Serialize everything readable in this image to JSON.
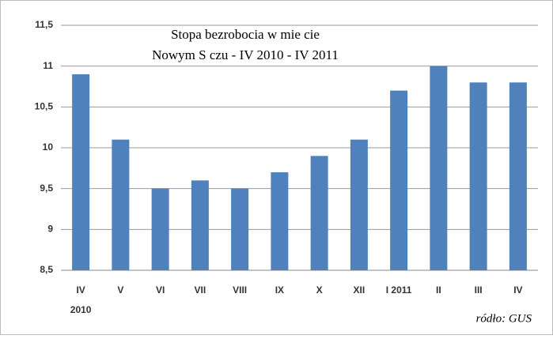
{
  "chart_data": {
    "type": "bar",
    "title": [
      "Stopa bezrobocia w mie  cie",
      "Nowym S  czu - IV 2010 - IV 2011"
    ],
    "categories": [
      "IV\n2010",
      "V",
      "VI",
      "VII",
      "VIII",
      "IX",
      "X",
      "XII",
      "I 2011",
      "II",
      "III",
      "IV"
    ],
    "values": [
      10.9,
      10.1,
      9.5,
      9.6,
      9.5,
      9.7,
      9.9,
      10.1,
      10.7,
      11.0,
      10.8,
      10.8
    ],
    "color": "#4f81bd",
    "ylim": [
      8.5,
      11.5
    ],
    "yticks": [
      {
        "value": 8.5,
        "label": "8,5"
      },
      9,
      {
        "value": 9.5,
        "label": "9,5"
      },
      10,
      {
        "value": 10.5,
        "label": "10,5"
      },
      11,
      {
        "value": 11.5,
        "label": "11,5"
      }
    ],
    "grid": true,
    "source": "ródło: GUS"
  }
}
